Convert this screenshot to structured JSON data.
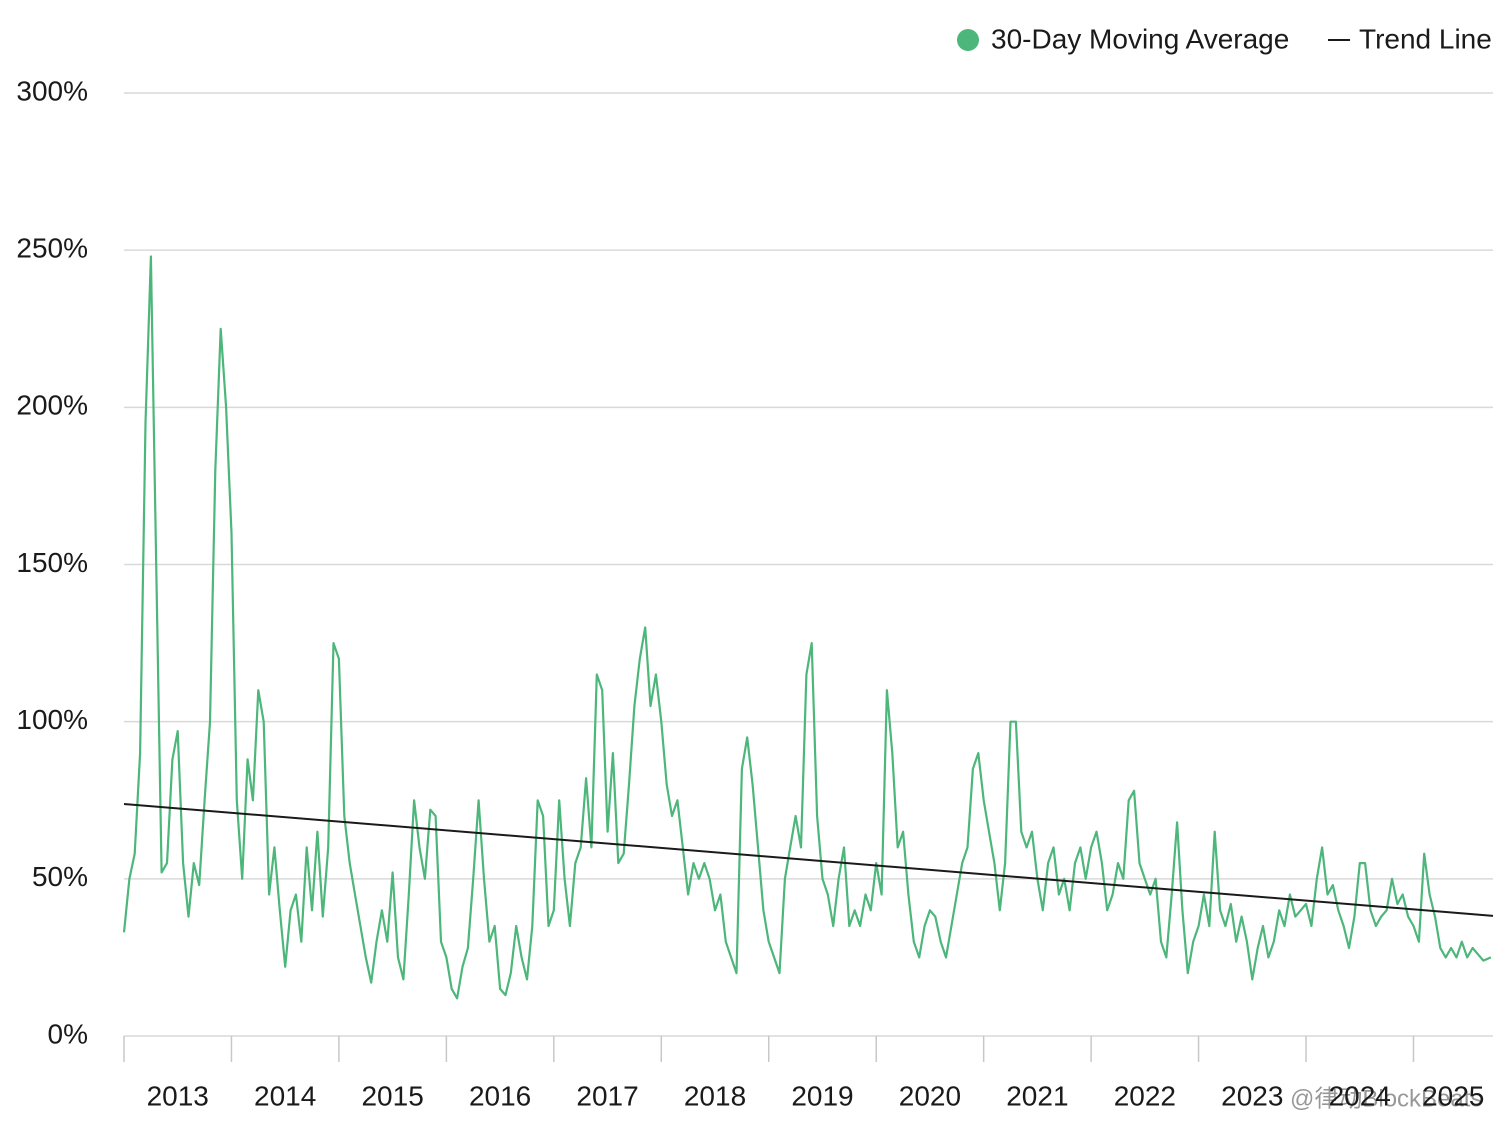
{
  "chart_data": {
    "type": "line",
    "ylim": [
      0,
      300
    ],
    "yticks": [
      {
        "value": 0,
        "label": "0%"
      },
      {
        "value": 50,
        "label": "50%"
      },
      {
        "value": 100,
        "label": "100%"
      },
      {
        "value": 150,
        "label": "150%"
      },
      {
        "value": 200,
        "label": "200%"
      },
      {
        "value": 250,
        "label": "250%"
      },
      {
        "value": 300,
        "label": "300%"
      }
    ],
    "xlim": [
      2013,
      2025.74
    ],
    "xticks": [
      2013,
      2014,
      2015,
      2016,
      2017,
      2018,
      2019,
      2020,
      2021,
      2022,
      2023,
      2024,
      2025
    ],
    "grid": true,
    "legend": "top-right",
    "watermark": "@律动BlockBeats",
    "series": [
      {
        "name": "30-Day Moving Average",
        "color": "#4db67a",
        "x": [
          2013,
          2013.05,
          2013.1,
          2013.15,
          2013.2,
          2013.25,
          2013.3,
          2013.35,
          2013.4,
          2013.45,
          2013.5,
          2013.55,
          2013.6,
          2013.65,
          2013.7,
          2013.75,
          2013.8,
          2013.85,
          2013.9,
          2013.95,
          2014,
          2014.05,
          2014.1,
          2014.15,
          2014.2,
          2014.25,
          2014.3,
          2014.35,
          2014.4,
          2014.45,
          2014.5,
          2014.55,
          2014.6,
          2014.65,
          2014.7,
          2014.75,
          2014.8,
          2014.85,
          2014.9,
          2014.95,
          2015,
          2015.05,
          2015.1,
          2015.15,
          2015.2,
          2015.25,
          2015.3,
          2015.35,
          2015.4,
          2015.45,
          2015.5,
          2015.55,
          2015.6,
          2015.65,
          2015.7,
          2015.75,
          2015.8,
          2015.85,
          2015.9,
          2015.95,
          2016,
          2016.05,
          2016.1,
          2016.15,
          2016.2,
          2016.25,
          2016.3,
          2016.35,
          2016.4,
          2016.45,
          2016.5,
          2016.55,
          2016.6,
          2016.65,
          2016.7,
          2016.75,
          2016.8,
          2016.85,
          2016.9,
          2016.95,
          2017,
          2017.05,
          2017.1,
          2017.15,
          2017.2,
          2017.25,
          2017.3,
          2017.35,
          2017.4,
          2017.45,
          2017.5,
          2017.55,
          2017.6,
          2017.65,
          2017.7,
          2017.75,
          2017.8,
          2017.85,
          2017.9,
          2017.95,
          2018,
          2018.05,
          2018.1,
          2018.15,
          2018.2,
          2018.25,
          2018.3,
          2018.35,
          2018.4,
          2018.45,
          2018.5,
          2018.55,
          2018.6,
          2018.65,
          2018.7,
          2018.75,
          2018.8,
          2018.85,
          2018.9,
          2018.95,
          2019,
          2019.05,
          2019.1,
          2019.15,
          2019.2,
          2019.25,
          2019.3,
          2019.35,
          2019.4,
          2019.45,
          2019.5,
          2019.55,
          2019.6,
          2019.65,
          2019.7,
          2019.75,
          2019.8,
          2019.85,
          2019.9,
          2019.95,
          2020,
          2020.05,
          2020.1,
          2020.15,
          2020.2,
          2020.25,
          2020.3,
          2020.35,
          2020.4,
          2020.45,
          2020.5,
          2020.55,
          2020.6,
          2020.65,
          2020.7,
          2020.75,
          2020.8,
          2020.85,
          2020.9,
          2020.95,
          2021,
          2021.05,
          2021.1,
          2021.15,
          2021.2,
          2021.25,
          2021.3,
          2021.35,
          2021.4,
          2021.45,
          2021.5,
          2021.55,
          2021.6,
          2021.65,
          2021.7,
          2021.75,
          2021.8,
          2021.85,
          2021.9,
          2021.95,
          2022,
          2022.05,
          2022.1,
          2022.15,
          2022.2,
          2022.25,
          2022.3,
          2022.35,
          2022.4,
          2022.45,
          2022.5,
          2022.55,
          2022.6,
          2022.65,
          2022.7,
          2022.75,
          2022.8,
          2022.85,
          2022.9,
          2022.95,
          2023,
          2023.05,
          2023.1,
          2023.15,
          2023.2,
          2023.25,
          2023.3,
          2023.35,
          2023.4,
          2023.45,
          2023.5,
          2023.55,
          2023.6,
          2023.65,
          2023.7,
          2023.75,
          2023.8,
          2023.85,
          2023.9,
          2023.95,
          2024,
          2024.05,
          2024.1,
          2024.15,
          2024.2,
          2024.25,
          2024.3,
          2024.35,
          2024.4,
          2024.45,
          2024.5,
          2024.55,
          2024.6,
          2024.65,
          2024.7,
          2024.75,
          2024.8,
          2024.85,
          2024.9,
          2024.95,
          2025,
          2025.05,
          2025.1,
          2025.15,
          2025.2,
          2025.25,
          2025.3,
          2025.35,
          2025.4,
          2025.45,
          2025.5,
          2025.55,
          2025.6,
          2025.65,
          2025.72
        ],
        "values": [
          33,
          50,
          58,
          90,
          195,
          248,
          150,
          52,
          55,
          88,
          97,
          55,
          38,
          55,
          48,
          75,
          100,
          180,
          225,
          200,
          160,
          75,
          50,
          88,
          75,
          110,
          100,
          45,
          60,
          40,
          22,
          40,
          45,
          30,
          60,
          40,
          65,
          38,
          60,
          125,
          120,
          70,
          55,
          45,
          35,
          25,
          17,
          30,
          40,
          30,
          52,
          25,
          18,
          45,
          75,
          60,
          50,
          72,
          70,
          30,
          25,
          15,
          12,
          22,
          28,
          50,
          75,
          50,
          30,
          35,
          15,
          13,
          20,
          35,
          25,
          18,
          35,
          75,
          70,
          35,
          40,
          75,
          50,
          35,
          55,
          60,
          82,
          60,
          115,
          110,
          65,
          90,
          55,
          58,
          80,
          105,
          120,
          130,
          105,
          115,
          100,
          80,
          70,
          75,
          60,
          45,
          55,
          50,
          55,
          50,
          40,
          45,
          30,
          25,
          20,
          85,
          95,
          80,
          60,
          40,
          30,
          25,
          20,
          50,
          60,
          70,
          60,
          115,
          125,
          70,
          50,
          45,
          35,
          50,
          60,
          35,
          40,
          35,
          45,
          40,
          55,
          45,
          110,
          90,
          60,
          65,
          45,
          30,
          25,
          35,
          40,
          38,
          30,
          25,
          35,
          45,
          55,
          60,
          85,
          90,
          75,
          65,
          55,
          40,
          55,
          100,
          100,
          65,
          60,
          65,
          50,
          40,
          55,
          60,
          45,
          50,
          40,
          55,
          60,
          50,
          60,
          65,
          55,
          40,
          45,
          55,
          50,
          75,
          78,
          55,
          50,
          45,
          50,
          30,
          25,
          45,
          68,
          40,
          20,
          30,
          35,
          45,
          35,
          65,
          40,
          35,
          42,
          30,
          38,
          30,
          18,
          28,
          35,
          25,
          30,
          40,
          35,
          45,
          38,
          40,
          42,
          35,
          50,
          60,
          45,
          48,
          40,
          35,
          28,
          38,
          55,
          55,
          40,
          35,
          38,
          40,
          50,
          42,
          45,
          38,
          35,
          30,
          58,
          45,
          38,
          28,
          25,
          28,
          25,
          30,
          25,
          28,
          26,
          24,
          25
        ]
      },
      {
        "name": "Trend Line",
        "color": "#1a1a1a",
        "x": [
          2013,
          2025.74
        ],
        "values": [
          73.8,
          38.2
        ]
      }
    ]
  }
}
